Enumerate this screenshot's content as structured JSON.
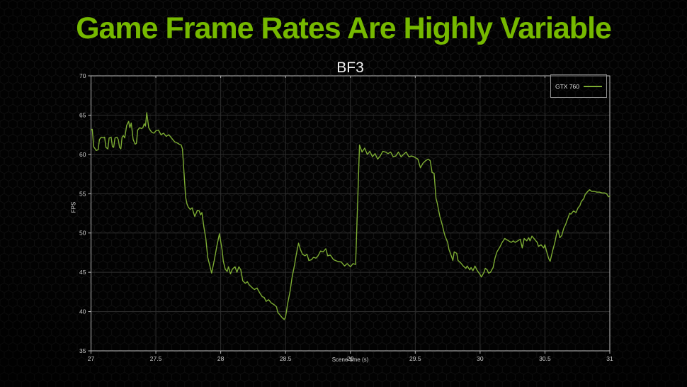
{
  "slide": {
    "title": "Game Frame Rates Are Highly Variable",
    "accent_color": "#76b900",
    "background_color": "#000000"
  },
  "chart": {
    "title": "BF3",
    "xlabel": "Scene time (s)",
    "ylabel": "FPS",
    "legend": {
      "label": "GTX 760",
      "line_color": "#7cab33"
    },
    "axis_color": "#b8b8b8",
    "grid_color": "#2e2e2e",
    "tick_label_color": "#cfcfcf"
  },
  "chart_data": {
    "type": "line",
    "title": "BF3",
    "xlabel": "Scene time (s)",
    "ylabel": "FPS",
    "xlim": [
      27,
      31
    ],
    "ylim": [
      35,
      70
    ],
    "x_ticks": [
      27,
      27.5,
      28,
      28.5,
      29,
      29.5,
      30,
      30.5,
      31
    ],
    "y_ticks": [
      35,
      40,
      45,
      50,
      55,
      60,
      65,
      70
    ],
    "grid": true,
    "legend_position": "top-right",
    "series": [
      {
        "name": "GTX 760",
        "color": "#7cab33",
        "points": [
          [
            27.0,
            63.1
          ],
          [
            27.01,
            63.2
          ],
          [
            27.02,
            61.0
          ],
          [
            27.04,
            60.5
          ],
          [
            27.055,
            60.6
          ],
          [
            27.065,
            61.9
          ],
          [
            27.08,
            62.2
          ],
          [
            27.095,
            62.1
          ],
          [
            27.105,
            62.2
          ],
          [
            27.115,
            60.9
          ],
          [
            27.13,
            60.7
          ],
          [
            27.14,
            62.1
          ],
          [
            27.155,
            62.2
          ],
          [
            27.165,
            61.0
          ],
          [
            27.175,
            60.9
          ],
          [
            27.185,
            62.1
          ],
          [
            27.2,
            62.2
          ],
          [
            27.21,
            61.9
          ],
          [
            27.22,
            60.9
          ],
          [
            27.23,
            60.7
          ],
          [
            27.24,
            62.2
          ],
          [
            27.25,
            62.4
          ],
          [
            27.26,
            62.1
          ],
          [
            27.275,
            63.7
          ],
          [
            27.29,
            64.2
          ],
          [
            27.3,
            63.4
          ],
          [
            27.31,
            64.0
          ],
          [
            27.325,
            61.9
          ],
          [
            27.34,
            61.3
          ],
          [
            27.35,
            61.4
          ],
          [
            27.36,
            63.1
          ],
          [
            27.375,
            63.4
          ],
          [
            27.39,
            63.3
          ],
          [
            27.4,
            63.4
          ],
          [
            27.41,
            63.9
          ],
          [
            27.42,
            63.6
          ],
          [
            27.43,
            65.3
          ],
          [
            27.445,
            63.4
          ],
          [
            27.46,
            63.0
          ],
          [
            27.47,
            62.8
          ],
          [
            27.485,
            62.7
          ],
          [
            27.5,
            63.0
          ],
          [
            27.52,
            63.1
          ],
          [
            27.54,
            62.5
          ],
          [
            27.56,
            62.7
          ],
          [
            27.58,
            62.3
          ],
          [
            27.6,
            62.5
          ],
          [
            27.62,
            62.1
          ],
          [
            27.645,
            61.6
          ],
          [
            27.66,
            61.5
          ],
          [
            27.68,
            61.3
          ],
          [
            27.695,
            61.2
          ],
          [
            27.705,
            60.7
          ],
          [
            27.72,
            57.0
          ],
          [
            27.73,
            54.5
          ],
          [
            27.74,
            53.7
          ],
          [
            27.75,
            53.3
          ],
          [
            27.765,
            53.0
          ],
          [
            27.78,
            53.2
          ],
          [
            27.79,
            52.6
          ],
          [
            27.8,
            52.1
          ],
          [
            27.82,
            52.9
          ],
          [
            27.835,
            52.8
          ],
          [
            27.845,
            52.3
          ],
          [
            27.855,
            52.6
          ],
          [
            27.87,
            50.8
          ],
          [
            27.885,
            49.3
          ],
          [
            27.9,
            46.9
          ],
          [
            27.93,
            44.9
          ],
          [
            27.95,
            46.5
          ],
          [
            27.97,
            48.3
          ],
          [
            27.99,
            49.9
          ],
          [
            28.01,
            47.9
          ],
          [
            28.02,
            46.4
          ],
          [
            28.035,
            45.4
          ],
          [
            28.05,
            45.1
          ],
          [
            28.06,
            45.7
          ],
          [
            28.075,
            44.8
          ],
          [
            28.09,
            45.4
          ],
          [
            28.11,
            45.7
          ],
          [
            28.125,
            45.0
          ],
          [
            28.14,
            45.7
          ],
          [
            28.155,
            45.3
          ],
          [
            28.17,
            43.9
          ],
          [
            28.19,
            43.6
          ],
          [
            28.205,
            43.8
          ],
          [
            28.22,
            43.4
          ],
          [
            28.245,
            43.0
          ],
          [
            28.26,
            42.8
          ],
          [
            28.28,
            43.0
          ],
          [
            28.3,
            42.4
          ],
          [
            28.32,
            41.9
          ],
          [
            28.335,
            41.8
          ],
          [
            28.35,
            41.3
          ],
          [
            28.37,
            41.5
          ],
          [
            28.39,
            41.1
          ],
          [
            28.41,
            40.9
          ],
          [
            28.43,
            40.6
          ],
          [
            28.44,
            39.9
          ],
          [
            28.46,
            39.5
          ],
          [
            28.475,
            39.2
          ],
          [
            28.49,
            39.0
          ],
          [
            28.5,
            39.3
          ],
          [
            28.515,
            40.9
          ],
          [
            28.535,
            42.6
          ],
          [
            28.55,
            44.3
          ],
          [
            28.57,
            46.0
          ],
          [
            28.58,
            47.0
          ],
          [
            28.6,
            48.7
          ],
          [
            28.615,
            47.9
          ],
          [
            28.63,
            47.3
          ],
          [
            28.65,
            47.1
          ],
          [
            28.665,
            47.3
          ],
          [
            28.68,
            46.5
          ],
          [
            28.7,
            46.6
          ],
          [
            28.715,
            46.9
          ],
          [
            28.735,
            46.8
          ],
          [
            28.75,
            47.1
          ],
          [
            28.77,
            47.7
          ],
          [
            28.79,
            47.6
          ],
          [
            28.81,
            48.0
          ],
          [
            28.825,
            47.1
          ],
          [
            28.845,
            47.2
          ],
          [
            28.87,
            46.6
          ],
          [
            28.9,
            46.4
          ],
          [
            28.93,
            46.3
          ],
          [
            28.955,
            45.8
          ],
          [
            28.975,
            46.1
          ],
          [
            29.0,
            45.7
          ],
          [
            29.02,
            46.1
          ],
          [
            29.04,
            46.0
          ],
          [
            29.07,
            61.2
          ],
          [
            29.09,
            60.3
          ],
          [
            29.11,
            60.8
          ],
          [
            29.13,
            60.0
          ],
          [
            29.15,
            60.4
          ],
          [
            29.17,
            59.7
          ],
          [
            29.19,
            60.1
          ],
          [
            29.21,
            59.4
          ],
          [
            29.23,
            59.8
          ],
          [
            29.25,
            60.4
          ],
          [
            29.27,
            60.3
          ],
          [
            29.29,
            60.1
          ],
          [
            29.31,
            60.3
          ],
          [
            29.33,
            59.7
          ],
          [
            29.35,
            59.8
          ],
          [
            29.37,
            60.3
          ],
          [
            29.39,
            59.7
          ],
          [
            29.41,
            60.0
          ],
          [
            29.43,
            60.3
          ],
          [
            29.45,
            59.7
          ],
          [
            29.47,
            59.8
          ],
          [
            29.49,
            59.7
          ],
          [
            29.51,
            59.5
          ],
          [
            29.52,
            59.4
          ],
          [
            29.54,
            58.3
          ],
          [
            29.56,
            58.9
          ],
          [
            29.58,
            59.2
          ],
          [
            29.6,
            59.4
          ],
          [
            29.615,
            59.2
          ],
          [
            29.63,
            57.7
          ],
          [
            29.645,
            57.6
          ],
          [
            29.66,
            54.4
          ],
          [
            29.67,
            53.8
          ],
          [
            29.68,
            52.9
          ],
          [
            29.69,
            52.1
          ],
          [
            29.71,
            50.9
          ],
          [
            29.72,
            50.2
          ],
          [
            29.73,
            49.6
          ],
          [
            29.75,
            48.8
          ],
          [
            29.76,
            47.9
          ],
          [
            29.78,
            47.0
          ],
          [
            29.79,
            46.5
          ],
          [
            29.8,
            47.6
          ],
          [
            29.82,
            47.4
          ],
          [
            29.83,
            46.5
          ],
          [
            29.85,
            46.2
          ],
          [
            29.87,
            45.8
          ],
          [
            29.89,
            45.5
          ],
          [
            29.9,
            45.8
          ],
          [
            29.92,
            45.3
          ],
          [
            29.93,
            45.6
          ],
          [
            29.945,
            45.2
          ],
          [
            29.96,
            45.8
          ],
          [
            29.975,
            45.3
          ],
          [
            30.0,
            44.7
          ],
          [
            30.01,
            44.4
          ],
          [
            30.03,
            45.0
          ],
          [
            30.04,
            45.5
          ],
          [
            30.055,
            45.3
          ],
          [
            30.065,
            44.9
          ],
          [
            30.08,
            45.0
          ],
          [
            30.1,
            45.6
          ],
          [
            30.115,
            46.8
          ],
          [
            30.13,
            47.6
          ],
          [
            30.155,
            48.3
          ],
          [
            30.17,
            48.8
          ],
          [
            30.19,
            49.3
          ],
          [
            30.2,
            49.2
          ],
          [
            30.22,
            49.0
          ],
          [
            30.24,
            48.8
          ],
          [
            30.255,
            49.0
          ],
          [
            30.27,
            48.8
          ],
          [
            30.29,
            49.0
          ],
          [
            30.31,
            49.2
          ],
          [
            30.325,
            48.1
          ],
          [
            30.34,
            49.3
          ],
          [
            30.36,
            49.0
          ],
          [
            30.375,
            49.4
          ],
          [
            30.385,
            49.0
          ],
          [
            30.4,
            49.6
          ],
          [
            30.42,
            49.2
          ],
          [
            30.44,
            48.8
          ],
          [
            30.45,
            48.3
          ],
          [
            30.47,
            48.5
          ],
          [
            30.49,
            48.1
          ],
          [
            30.5,
            48.5
          ],
          [
            30.51,
            47.8
          ],
          [
            30.53,
            46.7
          ],
          [
            30.54,
            46.4
          ],
          [
            30.56,
            47.8
          ],
          [
            30.575,
            48.7
          ],
          [
            30.59,
            49.9
          ],
          [
            30.6,
            50.4
          ],
          [
            30.615,
            49.4
          ],
          [
            30.63,
            49.7
          ],
          [
            30.645,
            50.6
          ],
          [
            30.66,
            51.1
          ],
          [
            30.67,
            51.6
          ],
          [
            30.68,
            52.0
          ],
          [
            30.69,
            52.5
          ],
          [
            30.7,
            52.4
          ],
          [
            30.72,
            52.8
          ],
          [
            30.74,
            52.6
          ],
          [
            30.755,
            53.2
          ],
          [
            30.77,
            53.5
          ],
          [
            30.78,
            54.0
          ],
          [
            30.8,
            54.4
          ],
          [
            30.81,
            54.9
          ],
          [
            30.83,
            55.3
          ],
          [
            30.845,
            55.5
          ],
          [
            30.86,
            55.3
          ],
          [
            30.88,
            55.3
          ],
          [
            30.9,
            55.2
          ],
          [
            30.92,
            55.2
          ],
          [
            30.94,
            55.1
          ],
          [
            30.96,
            55.1
          ],
          [
            30.975,
            55.0
          ],
          [
            30.99,
            54.6
          ],
          [
            31.0,
            54.7
          ]
        ]
      }
    ]
  }
}
